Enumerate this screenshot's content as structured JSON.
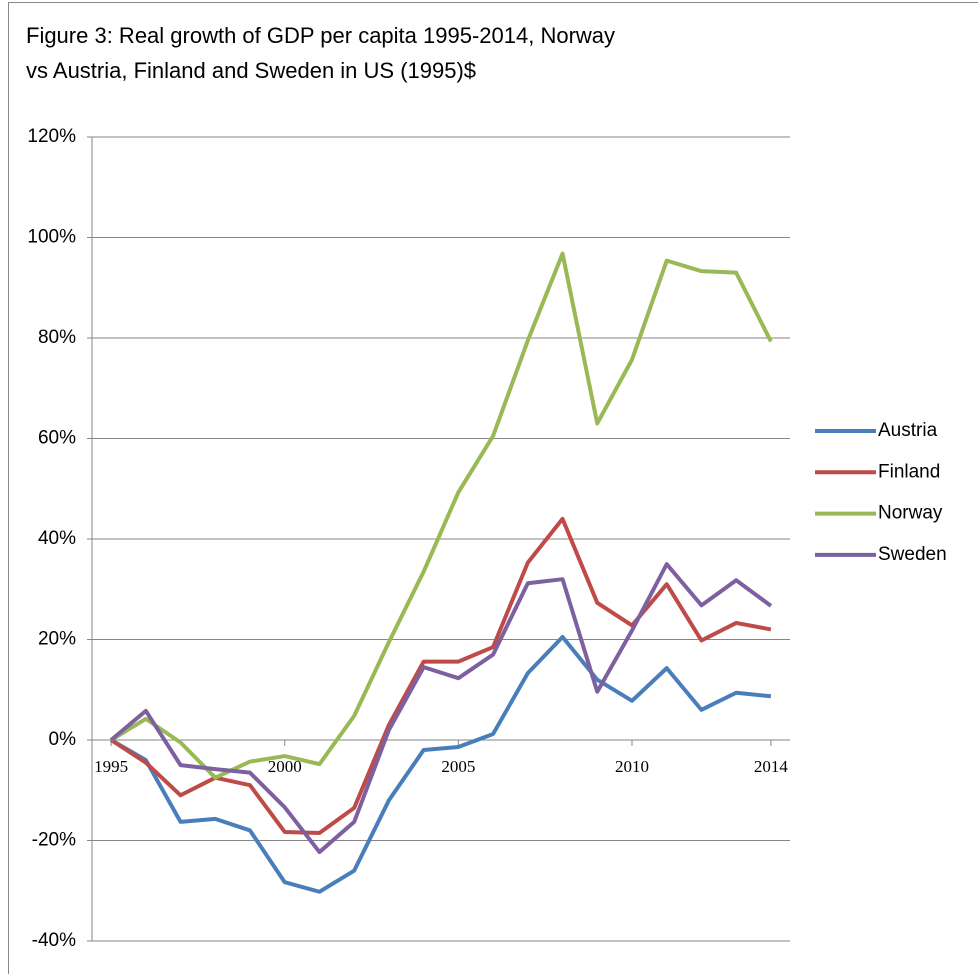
{
  "chart_data": {
    "type": "line",
    "title": "Figure 3: Real growth of GDP per capita 1995-2014, Norway\nvs Austria, Finland and Sweden  in US (1995)$",
    "x": [
      1995,
      1996,
      1997,
      1998,
      1999,
      2000,
      2001,
      2002,
      2003,
      2004,
      2005,
      2006,
      2007,
      2008,
      2009,
      2010,
      2011,
      2012,
      2013,
      2014
    ],
    "xlim": [
      1994.45,
      2014.55
    ],
    "xticks": [
      1995,
      2000,
      2005,
      2010,
      2014
    ],
    "ylim": [
      -40,
      120
    ],
    "yticks": [
      {
        "value": -40,
        "label": "-40%"
      },
      {
        "value": -20,
        "label": "-20%"
      },
      {
        "value": 0,
        "label": "0%"
      },
      {
        "value": 20,
        "label": "20%"
      },
      {
        "value": 40,
        "label": "40%"
      },
      {
        "value": 60,
        "label": "60%"
      },
      {
        "value": 80,
        "label": "80%"
      },
      {
        "value": 100,
        "label": "100%"
      },
      {
        "value": 120,
        "label": "120%"
      }
    ],
    "grid": true,
    "legend": "right",
    "series": [
      {
        "name": "Austria",
        "color": "#4a7ebb",
        "values": [
          0,
          -4,
          -16.3,
          -15.7,
          -18,
          -28.3,
          -30.2,
          -26,
          -12,
          -2,
          -1.4,
          1.2,
          13.3,
          20.5,
          12,
          7.8,
          14.3,
          6,
          9.4,
          8.7
        ]
      },
      {
        "name": "Finland",
        "color": "#be4b48",
        "values": [
          0,
          -4.5,
          -11,
          -7.5,
          -9,
          -18.3,
          -18.5,
          -13.5,
          3,
          15.6,
          15.6,
          18.5,
          35.3,
          44,
          27.3,
          22.8,
          31,
          19.8,
          23.3,
          22
        ]
      },
      {
        "name": "Norway",
        "color": "#98b954",
        "values": [
          0,
          4.2,
          -0.5,
          -7.5,
          -4.3,
          -3.2,
          -4.8,
          4.8,
          19.5,
          33.5,
          49.3,
          60.5,
          79.5,
          96.8,
          63,
          75.7,
          95.4,
          93.3,
          93,
          79.3
        ]
      },
      {
        "name": "Sweden",
        "color": "#7d60a0",
        "values": [
          0,
          5.8,
          -5,
          -5.8,
          -6.5,
          -13.4,
          -22.3,
          -16.3,
          2,
          14.5,
          12.3,
          17,
          31.2,
          32,
          9.6,
          21.8,
          35,
          26.8,
          31.8,
          26.7
        ]
      }
    ]
  }
}
